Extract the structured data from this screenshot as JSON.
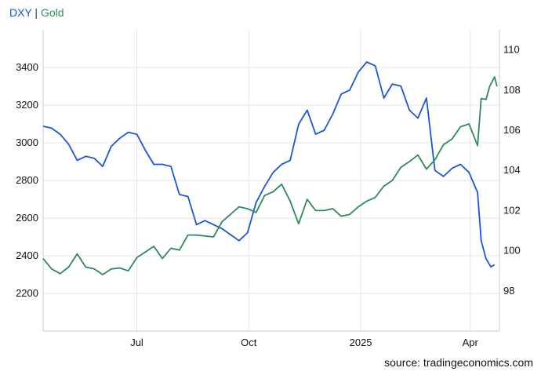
{
  "header": {
    "series1": "DXY",
    "separator": " | ",
    "series2": "Gold"
  },
  "footer": {
    "source": "source: tradingeconomics.com"
  },
  "colors": {
    "dxy": "#1a56db",
    "gold": "#2e8b57",
    "grid": "#e6e6e6",
    "axis": "#cccccc"
  },
  "chart_data": {
    "type": "line",
    "title": "",
    "xlabel": "",
    "x_ticks": [
      "Jul",
      "Oct",
      "2025",
      "Apr"
    ],
    "x_tick_dates": [
      "2024-07-01",
      "2024-10-01",
      "2025-01-01",
      "2025-04-01"
    ],
    "xlim": [
      "2024-04-15",
      "2025-04-25"
    ],
    "y_left": {
      "label": "",
      "lim": [
        2000,
        3600
      ],
      "ticks": [
        2200,
        2400,
        2600,
        2800,
        3000,
        3200,
        3400
      ],
      "series": "Gold"
    },
    "y_right": {
      "label": "",
      "lim": [
        96,
        111
      ],
      "ticks": [
        98,
        100,
        102,
        104,
        106,
        108,
        110
      ],
      "series": "DXY"
    },
    "grid": true,
    "series": [
      {
        "name": "DXY",
        "axis": "right",
        "points": [
          [
            "2024-04-15",
            106.2
          ],
          [
            "2024-04-22",
            106.1
          ],
          [
            "2024-04-29",
            105.8
          ],
          [
            "2024-05-06",
            105.3
          ],
          [
            "2024-05-13",
            104.5
          ],
          [
            "2024-05-20",
            104.7
          ],
          [
            "2024-05-27",
            104.6
          ],
          [
            "2024-06-03",
            104.2
          ],
          [
            "2024-06-10",
            105.2
          ],
          [
            "2024-06-17",
            105.6
          ],
          [
            "2024-06-24",
            105.9
          ],
          [
            "2024-07-01",
            105.8
          ],
          [
            "2024-07-08",
            105.0
          ],
          [
            "2024-07-15",
            104.3
          ],
          [
            "2024-07-22",
            104.3
          ],
          [
            "2024-07-29",
            104.2
          ],
          [
            "2024-08-05",
            102.8
          ],
          [
            "2024-08-12",
            102.7
          ],
          [
            "2024-08-19",
            101.3
          ],
          [
            "2024-08-26",
            101.5
          ],
          [
            "2024-09-02",
            101.3
          ],
          [
            "2024-09-09",
            101.1
          ],
          [
            "2024-09-16",
            100.8
          ],
          [
            "2024-09-23",
            100.5
          ],
          [
            "2024-09-30",
            100.9
          ],
          [
            "2024-10-07",
            102.4
          ],
          [
            "2024-10-14",
            103.2
          ],
          [
            "2024-10-21",
            103.9
          ],
          [
            "2024-10-28",
            104.3
          ],
          [
            "2024-11-04",
            104.5
          ],
          [
            "2024-11-11",
            106.3
          ],
          [
            "2024-11-18",
            107.0
          ],
          [
            "2024-11-25",
            105.8
          ],
          [
            "2024-12-02",
            106.0
          ],
          [
            "2024-12-09",
            106.8
          ],
          [
            "2024-12-16",
            107.8
          ],
          [
            "2024-12-23",
            108.0
          ],
          [
            "2024-12-30",
            108.9
          ],
          [
            "2025-01-06",
            109.4
          ],
          [
            "2025-01-13",
            109.2
          ],
          [
            "2025-01-20",
            107.6
          ],
          [
            "2025-01-27",
            108.3
          ],
          [
            "2025-02-03",
            108.2
          ],
          [
            "2025-02-10",
            107.0
          ],
          [
            "2025-02-17",
            106.6
          ],
          [
            "2025-02-24",
            107.6
          ],
          [
            "2025-03-03",
            104.0
          ],
          [
            "2025-03-10",
            103.7
          ],
          [
            "2025-03-17",
            104.1
          ],
          [
            "2025-03-24",
            104.3
          ],
          [
            "2025-03-31",
            103.9
          ],
          [
            "2025-04-07",
            102.9
          ],
          [
            "2025-04-10",
            100.5
          ],
          [
            "2025-04-14",
            99.6
          ],
          [
            "2025-04-18",
            99.2
          ],
          [
            "2025-04-21",
            99.3
          ]
        ]
      },
      {
        "name": "Gold",
        "axis": "left",
        "points": [
          [
            "2024-04-15",
            2385
          ],
          [
            "2024-04-22",
            2330
          ],
          [
            "2024-04-29",
            2305
          ],
          [
            "2024-05-06",
            2340
          ],
          [
            "2024-05-13",
            2410
          ],
          [
            "2024-05-20",
            2340
          ],
          [
            "2024-05-27",
            2330
          ],
          [
            "2024-06-03",
            2300
          ],
          [
            "2024-06-10",
            2330
          ],
          [
            "2024-06-17",
            2335
          ],
          [
            "2024-06-24",
            2320
          ],
          [
            "2024-07-01",
            2390
          ],
          [
            "2024-07-08",
            2420
          ],
          [
            "2024-07-15",
            2450
          ],
          [
            "2024-07-22",
            2385
          ],
          [
            "2024-07-29",
            2440
          ],
          [
            "2024-08-05",
            2430
          ],
          [
            "2024-08-12",
            2510
          ],
          [
            "2024-08-19",
            2510
          ],
          [
            "2024-08-26",
            2505
          ],
          [
            "2024-09-02",
            2500
          ],
          [
            "2024-09-09",
            2580
          ],
          [
            "2024-09-16",
            2620
          ],
          [
            "2024-09-23",
            2660
          ],
          [
            "2024-09-30",
            2650
          ],
          [
            "2024-10-07",
            2630
          ],
          [
            "2024-10-14",
            2720
          ],
          [
            "2024-10-21",
            2740
          ],
          [
            "2024-10-28",
            2780
          ],
          [
            "2024-11-04",
            2690
          ],
          [
            "2024-11-11",
            2570
          ],
          [
            "2024-11-18",
            2700
          ],
          [
            "2024-11-25",
            2640
          ],
          [
            "2024-12-02",
            2640
          ],
          [
            "2024-12-09",
            2650
          ],
          [
            "2024-12-16",
            2610
          ],
          [
            "2024-12-23",
            2620
          ],
          [
            "2024-12-30",
            2660
          ],
          [
            "2025-01-06",
            2690
          ],
          [
            "2025-01-13",
            2710
          ],
          [
            "2025-01-20",
            2770
          ],
          [
            "2025-01-27",
            2800
          ],
          [
            "2025-02-03",
            2870
          ],
          [
            "2025-02-10",
            2900
          ],
          [
            "2025-02-17",
            2935
          ],
          [
            "2025-02-24",
            2860
          ],
          [
            "2025-03-03",
            2910
          ],
          [
            "2025-03-10",
            2990
          ],
          [
            "2025-03-17",
            3020
          ],
          [
            "2025-03-24",
            3085
          ],
          [
            "2025-03-31",
            3100
          ],
          [
            "2025-04-04",
            3035
          ],
          [
            "2025-04-07",
            2985
          ],
          [
            "2025-04-10",
            3235
          ],
          [
            "2025-04-14",
            3230
          ],
          [
            "2025-04-17",
            3300
          ],
          [
            "2025-04-21",
            3350
          ],
          [
            "2025-04-23",
            3300
          ]
        ]
      }
    ]
  }
}
